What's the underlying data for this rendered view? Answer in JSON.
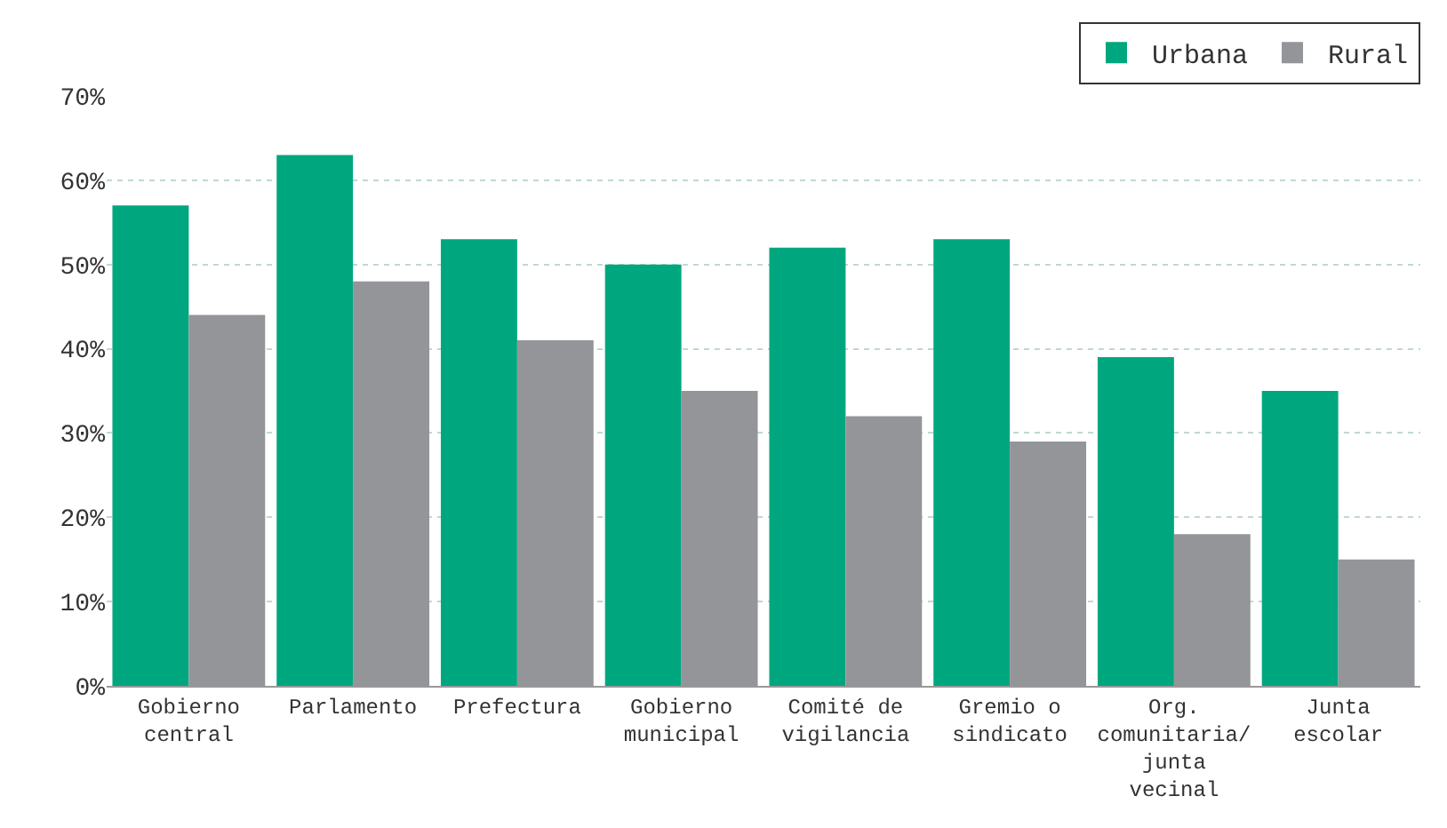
{
  "chart_data": {
    "type": "bar",
    "categories": [
      "Gobierno central",
      "Parlamento",
      "Prefectura",
      "Gobierno municipal",
      "Comité de vigilancia",
      "Gremio o sindicato",
      "Org. comunitaria/ junta vecinal",
      "Junta escolar"
    ],
    "series": [
      {
        "name": "Urbana",
        "color": "#00a77e",
        "values": [
          57,
          63,
          53,
          50,
          52,
          53,
          39,
          35
        ]
      },
      {
        "name": "Rural",
        "color": "#939598",
        "values": [
          44,
          48,
          41,
          35,
          32,
          29,
          18,
          15
        ]
      }
    ],
    "ylim": [
      0,
      70
    ],
    "yticks": [
      {
        "value": 0,
        "label": "0%"
      },
      {
        "value": 10,
        "label": "10%"
      },
      {
        "value": 20,
        "label": "20%"
      },
      {
        "value": 30,
        "label": "30%"
      },
      {
        "value": 40,
        "label": "40%"
      },
      {
        "value": 50,
        "label": "50%"
      },
      {
        "value": 60,
        "label": "60%"
      },
      {
        "value": 70,
        "label": "70%"
      }
    ],
    "grid": "y",
    "legend": "top right"
  }
}
